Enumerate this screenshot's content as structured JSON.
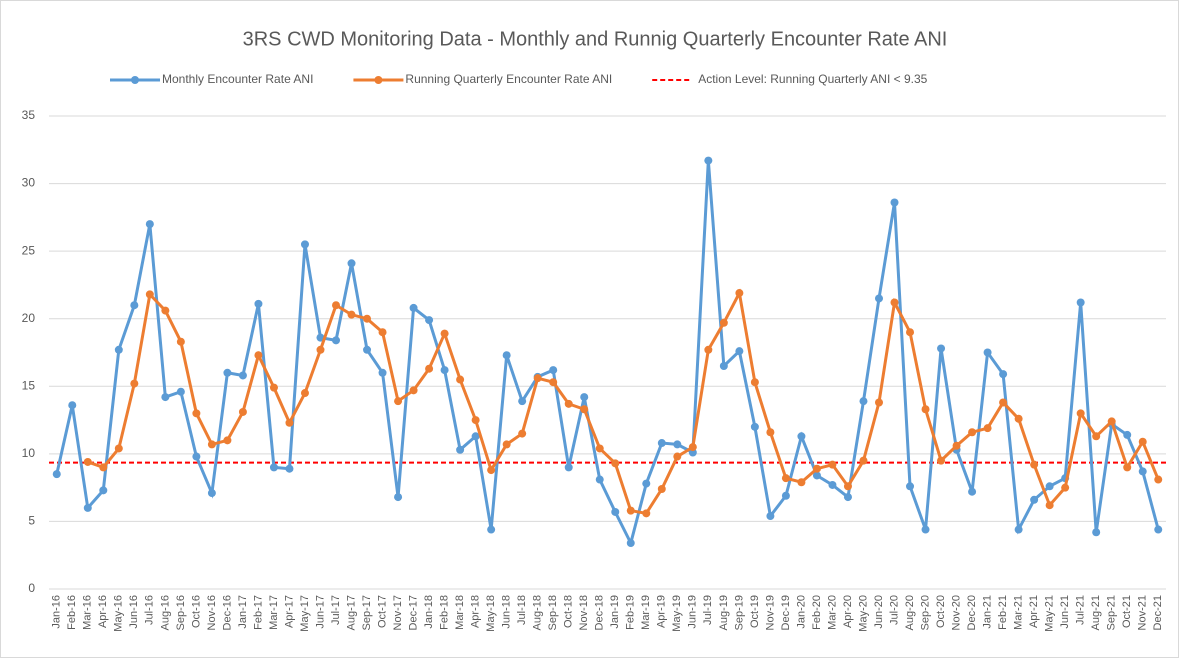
{
  "chart_data": {
    "type": "line",
    "title": "3RS CWD Monitoring Data - Monthly and Runnig Quarterly Encounter Rate ANI",
    "categories": [
      "Jan-16",
      "Feb-16",
      "Mar-16",
      "Apr-16",
      "May-16",
      "Jun-16",
      "Jul-16",
      "Aug-16",
      "Sep-16",
      "Oct-16",
      "Nov-16",
      "Dec-16",
      "Jan-17",
      "Feb-17",
      "Mar-17",
      "Apr-17",
      "May-17",
      "Jun-17",
      "Jul-17",
      "Aug-17",
      "Sep-17",
      "Oct-17",
      "Nov-17",
      "Dec-17",
      "Jan-18",
      "Feb-18",
      "Mar-18",
      "Apr-18",
      "May-18",
      "Jun-18",
      "Jul-18",
      "Aug-18",
      "Sep-18",
      "Oct-18",
      "Nov-18",
      "Dec-18",
      "Jan-19",
      "Feb-19",
      "Mar-19",
      "Apr-19",
      "May-19",
      "Jun-19",
      "Jul-19",
      "Aug-19",
      "Sep-19",
      "Oct-19",
      "Nov-19",
      "Dec-19",
      "Jan-20",
      "Feb-20",
      "Mar-20",
      "Apr-20",
      "May-20",
      "Jun-20",
      "Jul-20",
      "Aug-20",
      "Sep-20",
      "Oct-20",
      "Nov-20",
      "Dec-20",
      "Jan-21",
      "Feb-21",
      "Mar-21",
      "Apr-21",
      "May-21",
      "Jun-21",
      "Jul-21",
      "Aug-21",
      "Sep-21",
      "Oct-21",
      "Nov-21",
      "Dec-21"
    ],
    "series": [
      {
        "name": "Monthly Encounter Rate ANI",
        "color": "#5b9bd5",
        "values": [
          8.5,
          13.6,
          6.0,
          7.3,
          17.7,
          21.0,
          27.0,
          14.2,
          14.6,
          9.8,
          7.1,
          16.0,
          15.8,
          21.1,
          9.0,
          8.9,
          25.5,
          18.6,
          18.4,
          24.1,
          17.7,
          16.0,
          6.8,
          20.8,
          19.9,
          16.2,
          10.3,
          11.3,
          4.4,
          17.3,
          13.9,
          15.7,
          16.2,
          9.0,
          14.2,
          8.1,
          5.7,
          3.4,
          7.8,
          10.8,
          10.7,
          10.1,
          31.7,
          16.5,
          17.6,
          12.0,
          5.4,
          6.9,
          11.3,
          8.4,
          7.7,
          6.8,
          13.9,
          21.5,
          28.6,
          7.6,
          4.4,
          17.8,
          10.3,
          7.2,
          17.5,
          15.9,
          4.4,
          6.6,
          7.6,
          8.2,
          21.2,
          4.2,
          12.2,
          11.4,
          8.7,
          4.4
        ]
      },
      {
        "name": "Running Quarterly Encounter Rate ANI",
        "color": "#ed7d31",
        "values": [
          null,
          null,
          9.4,
          9.0,
          10.4,
          15.2,
          21.8,
          20.6,
          18.3,
          13.0,
          10.7,
          11.0,
          13.1,
          17.3,
          14.9,
          12.3,
          14.5,
          17.7,
          21.0,
          20.3,
          20.0,
          19.0,
          13.9,
          14.7,
          16.3,
          18.9,
          15.5,
          12.5,
          8.8,
          10.7,
          11.5,
          15.6,
          15.3,
          13.7,
          13.3,
          10.4,
          9.3,
          5.8,
          5.6,
          7.4,
          9.8,
          10.5,
          17.7,
          19.7,
          21.9,
          15.3,
          11.6,
          8.2,
          7.9,
          8.9,
          9.2,
          7.6,
          9.5,
          13.8,
          21.2,
          19.0,
          13.3,
          9.5,
          10.6,
          11.6,
          11.9,
          13.8,
          12.6,
          9.2,
          6.2,
          7.5,
          13.0,
          11.3,
          12.4,
          9.0,
          10.9,
          8.1
        ]
      }
    ],
    "threshold": {
      "name": "Action Level: Running Quarterly ANI < 9.35",
      "value": 9.35,
      "color": "#ff0000",
      "dashed": true
    },
    "ylim": [
      0,
      35
    ],
    "yticks": [
      0,
      5,
      10,
      15,
      20,
      25,
      30,
      35
    ],
    "grid": true,
    "legend": "top"
  }
}
